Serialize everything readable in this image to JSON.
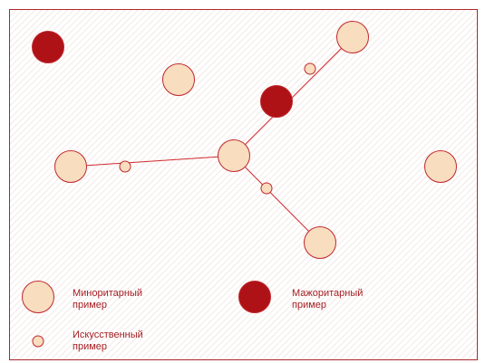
{
  "colors": {
    "minority_fill": "#F8DDBF",
    "minority_stroke": "#C0272D",
    "majority_fill": "#AE1217",
    "majority_stroke": "#C0272D",
    "line": "#D0282E",
    "frame": "#B0262B",
    "label_text": "#A51E22",
    "hatch_line": "#E9DCD6"
  },
  "legend": {
    "minority_label_line1": "Миноритарный",
    "minority_label_line2": "пример",
    "majority_label_line1": "Мажоритарный",
    "majority_label_line2": "пример",
    "synthetic_label_line1": "Искусственный",
    "synthetic_label_line2": "пример"
  }
}
